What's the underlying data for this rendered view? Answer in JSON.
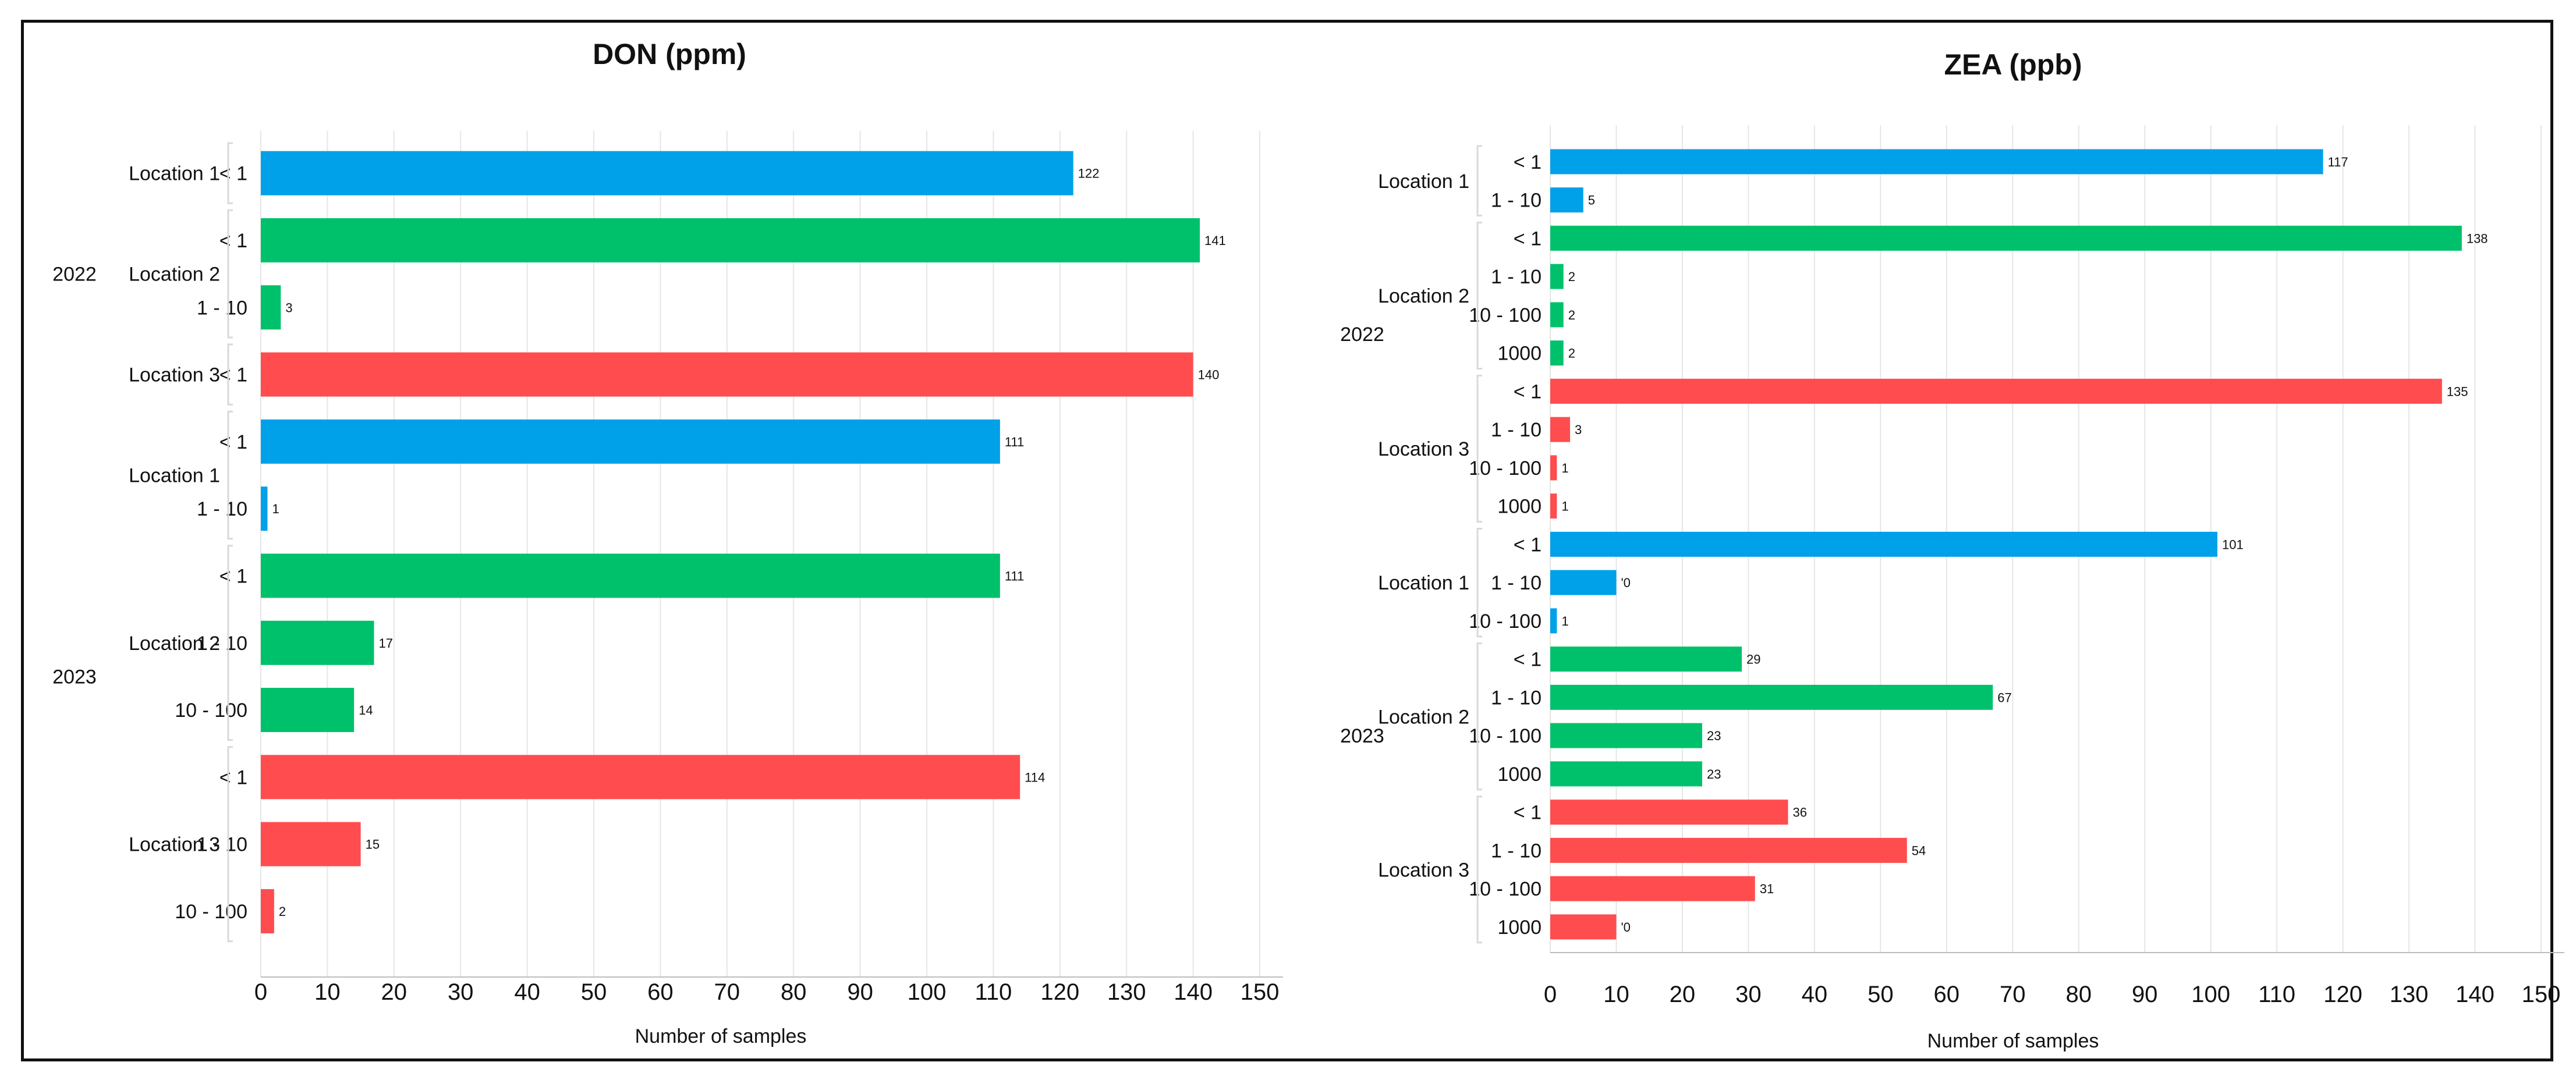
{
  "colors": {
    "Location 1": "#00a1e9",
    "Location 2": "#00c16b",
    "Location 3": "#ff4d4f"
  },
  "chart_data": [
    {
      "type": "bar",
      "orientation": "horizontal",
      "title": "DON (ppm)",
      "xlabel": "Number of samples",
      "ylabel": "",
      "xlim": [
        0,
        150
      ],
      "xticks": [
        0,
        10,
        20,
        30,
        40,
        50,
        60,
        70,
        80,
        90,
        100,
        110,
        120,
        130,
        140,
        150
      ],
      "grid": true,
      "legend": "none",
      "groups": [
        {
          "year": "2022",
          "locations": [
            {
              "name": "Location 1",
              "bars": [
                {
                  "category": "< 1",
                  "value": 122
                }
              ]
            },
            {
              "name": "Location 2",
              "bars": [
                {
                  "category": "< 1",
                  "value": 141
                },
                {
                  "category": "1 - 10",
                  "value": 3
                }
              ]
            },
            {
              "name": "Location 3",
              "bars": [
                {
                  "category": "< 1",
                  "value": 140
                }
              ]
            }
          ]
        },
        {
          "year": "2023",
          "locations": [
            {
              "name": "Location 1",
              "bars": [
                {
                  "category": "< 1",
                  "value": 111
                },
                {
                  "category": "1 - 10",
                  "value": 1
                }
              ]
            },
            {
              "name": "Location 2",
              "bars": [
                {
                  "category": "< 1",
                  "value": 111
                },
                {
                  "category": "1 - 10",
                  "value": 17
                },
                {
                  "category": "10 - 100",
                  "value": 14
                }
              ]
            },
            {
              "name": "Location 3",
              "bars": [
                {
                  "category": "< 1",
                  "value": 114
                },
                {
                  "category": "1 - 10",
                  "value": 15
                },
                {
                  "category": "10 - 100",
                  "value": 2
                }
              ]
            }
          ]
        }
      ]
    },
    {
      "type": "bar",
      "orientation": "horizontal",
      "title": "ZEA (ppb)",
      "xlabel": "Number of samples",
      "ylabel": "",
      "xlim": [
        0,
        150
      ],
      "xticks": [
        0,
        10,
        20,
        30,
        40,
        50,
        60,
        70,
        80,
        90,
        100,
        110,
        120,
        130,
        140,
        150
      ],
      "grid": true,
      "legend": "none",
      "groups": [
        {
          "year": "2022",
          "locations": [
            {
              "name": "Location 1",
              "bars": [
                {
                  "category": "< 1",
                  "value": 117
                },
                {
                  "category": "1 - 10",
                  "value": 5
                }
              ]
            },
            {
              "name": "Location 2",
              "bars": [
                {
                  "category": "< 1",
                  "value": 138
                },
                {
                  "category": "1 - 10",
                  "value": 2
                },
                {
                  "category": "10 - 100",
                  "value": 2
                },
                {
                  "category": "1000",
                  "value": 2
                }
              ]
            },
            {
              "name": "Location 3",
              "bars": [
                {
                  "category": "< 1",
                  "value": 135
                },
                {
                  "category": "1 - 10",
                  "value": 3
                },
                {
                  "category": "10 - 100",
                  "value": 1
                },
                {
                  "category": "1000",
                  "value": 1
                }
              ]
            }
          ]
        },
        {
          "year": "2023",
          "locations": [
            {
              "name": "Location 1",
              "bars": [
                {
                  "category": "< 1",
                  "value": 101
                },
                {
                  "category": "1 - 10",
                  "value": 10,
                  "label": "'0"
                },
                {
                  "category": "10 - 100",
                  "value": 1
                }
              ]
            },
            {
              "name": "Location 2",
              "bars": [
                {
                  "category": "< 1",
                  "value": 29
                },
                {
                  "category": "1 - 10",
                  "value": 67
                },
                {
                  "category": "10 - 100",
                  "value": 23
                },
                {
                  "category": "1000",
                  "value": 23
                }
              ]
            },
            {
              "name": "Location 3",
              "bars": [
                {
                  "category": "< 1",
                  "value": 36
                },
                {
                  "category": "1 - 10",
                  "value": 54
                },
                {
                  "category": "10 - 100",
                  "value": 31
                },
                {
                  "category": "1000",
                  "value": 10,
                  "label": "'0"
                }
              ]
            }
          ]
        }
      ]
    }
  ]
}
